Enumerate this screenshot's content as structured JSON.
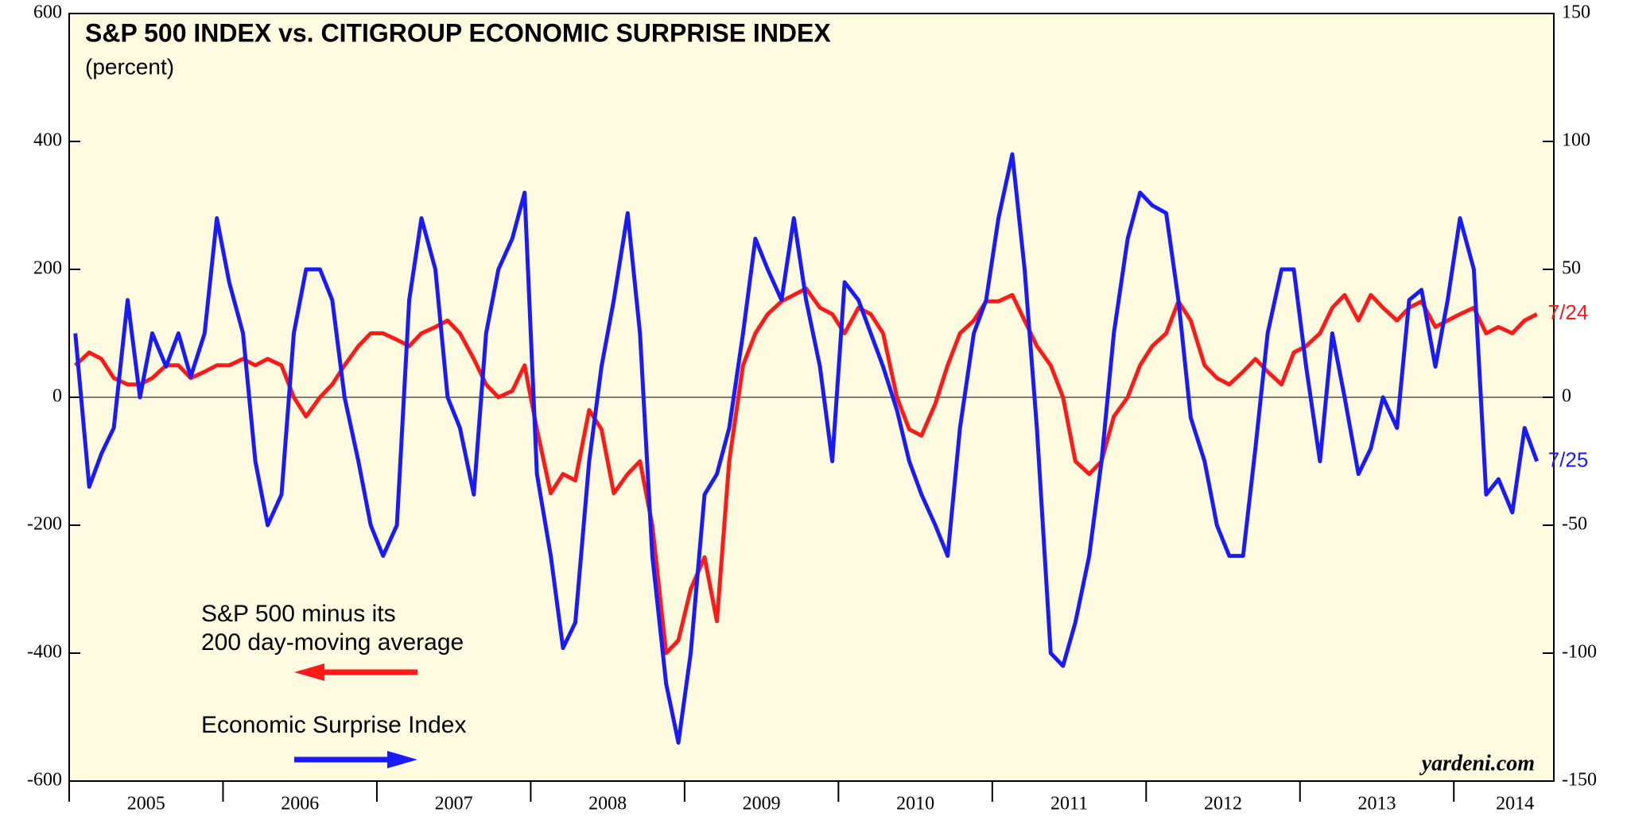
{
  "chart_data": {
    "type": "line",
    "title": "S&P 500 INDEX vs. CITIGROUP ECONOMIC SURPRISE INDEX",
    "subtitle": "(percent)",
    "source": "yardeni.com",
    "x": [
      2005.04,
      2005.13,
      2005.21,
      2005.29,
      2005.38,
      2005.46,
      2005.54,
      2005.63,
      2005.71,
      2005.79,
      2005.88,
      2005.96,
      2006.04,
      2006.13,
      2006.21,
      2006.29,
      2006.38,
      2006.46,
      2006.54,
      2006.63,
      2006.71,
      2006.79,
      2006.88,
      2006.96,
      2007.04,
      2007.13,
      2007.21,
      2007.29,
      2007.38,
      2007.46,
      2007.54,
      2007.63,
      2007.71,
      2007.79,
      2007.88,
      2007.96,
      2008.04,
      2008.13,
      2008.21,
      2008.29,
      2008.38,
      2008.46,
      2008.54,
      2008.63,
      2008.71,
      2008.79,
      2008.88,
      2008.96,
      2009.04,
      2009.13,
      2009.21,
      2009.29,
      2009.38,
      2009.46,
      2009.54,
      2009.63,
      2009.71,
      2009.79,
      2009.88,
      2009.96,
      2010.04,
      2010.13,
      2010.21,
      2010.29,
      2010.38,
      2010.46,
      2010.54,
      2010.63,
      2010.71,
      2010.79,
      2010.88,
      2010.96,
      2011.04,
      2011.13,
      2011.21,
      2011.29,
      2011.38,
      2011.46,
      2011.54,
      2011.63,
      2011.71,
      2011.79,
      2011.88,
      2011.96,
      2012.04,
      2012.13,
      2012.21,
      2012.29,
      2012.38,
      2012.46,
      2012.54,
      2012.63,
      2012.71,
      2012.79,
      2012.88,
      2012.96,
      2013.04,
      2013.13,
      2013.21,
      2013.29,
      2013.38,
      2013.46,
      2013.54,
      2013.63,
      2013.71,
      2013.79,
      2013.88,
      2013.96,
      2014.04,
      2014.13,
      2014.21,
      2014.29,
      2014.38,
      2014.46,
      2014.54
    ],
    "series": [
      {
        "name": "S&P 500 minus its\n200 day-moving average",
        "color": "#ff1a1a",
        "axis": "y",
        "end_label": "7/24",
        "values": [
          50,
          70,
          60,
          30,
          20,
          20,
          30,
          50,
          50,
          30,
          40,
          50,
          50,
          60,
          50,
          60,
          50,
          0,
          -30,
          0,
          20,
          50,
          80,
          100,
          100,
          90,
          80,
          100,
          110,
          120,
          100,
          60,
          20,
          0,
          10,
          50,
          -50,
          -150,
          -120,
          -130,
          -20,
          -50,
          -150,
          -120,
          -100,
          -200,
          -400,
          -380,
          -300,
          -250,
          -350,
          -100,
          50,
          100,
          130,
          150,
          160,
          170,
          140,
          130,
          100,
          140,
          130,
          100,
          0,
          -50,
          -60,
          -10,
          50,
          100,
          120,
          150,
          150,
          160,
          120,
          80,
          50,
          0,
          -100,
          -120,
          -100,
          -30,
          0,
          50,
          80,
          100,
          150,
          120,
          50,
          30,
          20,
          40,
          60,
          40,
          20,
          70,
          80,
          100,
          140,
          160,
          120,
          160,
          140,
          120,
          140,
          150,
          110,
          120,
          130,
          140,
          100,
          110,
          100,
          120,
          130
        ]
      },
      {
        "name": "Economic Surprise Index",
        "color": "#1a1aff",
        "axis": "y2",
        "end_label": "7/25",
        "values": [
          25,
          -35,
          -22,
          -12,
          38,
          0,
          25,
          12,
          25,
          8,
          25,
          70,
          45,
          25,
          -25,
          -50,
          -38,
          25,
          50,
          50,
          38,
          0,
          -25,
          -50,
          -62,
          -50,
          38,
          70,
          50,
          0,
          -12,
          -38,
          25,
          50,
          62,
          80,
          -30,
          -62,
          -98,
          -88,
          -25,
          12,
          38,
          72,
          25,
          -62,
          -112,
          -135,
          -100,
          -38,
          -30,
          -12,
          25,
          62,
          50,
          38,
          70,
          38,
          12,
          -25,
          45,
          38,
          25,
          12,
          -5,
          -25,
          -38,
          -50,
          -62,
          -12,
          25,
          38,
          70,
          95,
          50,
          -12,
          -100,
          -105,
          -88,
          -62,
          -25,
          25,
          62,
          80,
          75,
          72,
          38,
          -8,
          -25,
          -50,
          -62,
          -62,
          -20,
          25,
          50,
          50,
          12,
          -25,
          25,
          0,
          -30,
          -20,
          0,
          -12,
          38,
          42,
          12,
          38,
          70,
          50,
          -38,
          -32,
          -45,
          -12,
          -25
        ]
      }
    ],
    "xlim": [
      2005,
      2014.65
    ],
    "xticks": [
      2005,
      2006,
      2007,
      2008,
      2009,
      2010,
      2011,
      2012,
      2013,
      2014
    ],
    "ylim": [
      -600,
      600
    ],
    "yticks": [
      -600,
      -400,
      -200,
      0,
      200,
      400,
      600
    ],
    "y2lim": [
      -150,
      150
    ],
    "y2ticks": [
      -150,
      -100,
      -50,
      0,
      50,
      100,
      150
    ]
  }
}
